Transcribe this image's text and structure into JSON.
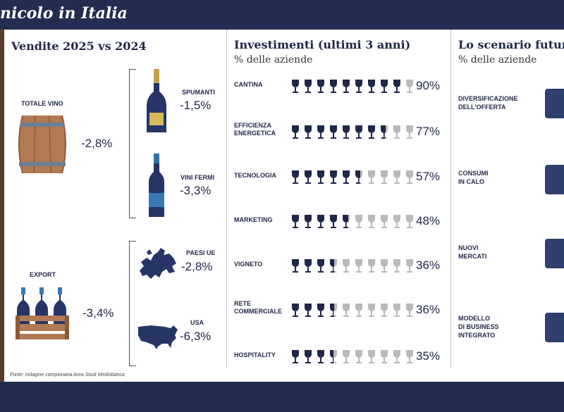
{
  "header": {
    "title": "nicolo in Italia"
  },
  "colors": {
    "navy": "#232d4f",
    "glass_full": "#1f2748",
    "glass_empty": "#b9b9b9"
  },
  "left": {
    "title": "Vendite 2025 vs 2024",
    "totale_label": "TOTALE VINO",
    "totale_value": "-2,8%",
    "spumanti_label": "SPUMANTI",
    "spumanti_value": "-1,5%",
    "vini_fermi_label": "VINI FERMI",
    "vini_fermi_value": "-3,3%",
    "export_label": "EXPORT",
    "export_value": "-3,4%",
    "ue_label": "PAESI UE",
    "ue_value": "-2,8%",
    "usa_label": "USA",
    "usa_value": "-6,3%"
  },
  "middle": {
    "title": "Investimenti (ultimi 3 anni)",
    "subtitle": "% delle aziende",
    "rows": [
      {
        "label": "CANTINA",
        "label2": "",
        "pct": "90%",
        "value": 90
      },
      {
        "label": "EFFICIENZA",
        "label2": "ENERGETICA",
        "pct": "77%",
        "value": 77
      },
      {
        "label": "TECNOLOGIA",
        "label2": "",
        "pct": "57%",
        "value": 57
      },
      {
        "label": "MARKETING",
        "label2": "",
        "pct": "48%",
        "value": 48
      },
      {
        "label": "VIGNETO",
        "label2": "",
        "pct": "36%",
        "value": 36
      },
      {
        "label": "RETE",
        "label2": "COMMERCIALE",
        "pct": "36%",
        "value": 36
      },
      {
        "label": "HOSPITALITY",
        "label2": "",
        "pct": "35%",
        "value": 35
      }
    ]
  },
  "right": {
    "title": "Lo scenario futur",
    "subtitle": "% delle aziende",
    "items": [
      {
        "l1": "DIVERSIFICAZIONE",
        "l2": "DELL'OFFERTA",
        "l3": ""
      },
      {
        "l1": "CONSUMI",
        "l2": "IN CALO",
        "l3": ""
      },
      {
        "l1": "NUOVI",
        "l2": "MERCATI",
        "l3": ""
      },
      {
        "l1": "MODELLO",
        "l2": "DI BUSINESS",
        "l3": "INTEGRATO"
      }
    ]
  },
  "footer": {
    "source": "Fonte: indagine campionaria Area Studi Mediobanca"
  }
}
